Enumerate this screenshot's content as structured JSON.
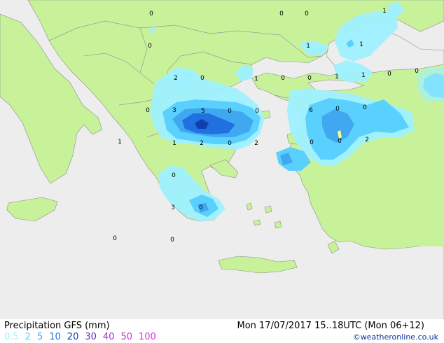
{
  "footer": {
    "title": "Precipitation GFS (mm)",
    "datetime": "Mon 17/07/2017 15..18UTC   (Mon 06+12)",
    "credit": "©weatheronline.co.uk",
    "legend": [
      {
        "label": "0.5",
        "color": "#9ff0ff"
      },
      {
        "label": "2",
        "color": "#5ad0ff"
      },
      {
        "label": "5",
        "color": "#40a8f0"
      },
      {
        "label": "10",
        "color": "#2070e0"
      },
      {
        "label": "20",
        "color": "#1040b0"
      },
      {
        "label": "30",
        "color": "#6a2ab8"
      },
      {
        "label": "40",
        "color": "#9a38c8"
      },
      {
        "label": "50",
        "color": "#c038c8"
      },
      {
        "label": "100",
        "color": "#e030e8"
      }
    ]
  },
  "colors": {
    "sea": "#ededed",
    "land": "#c8f29a",
    "border": "#9a9a9a"
  },
  "map_values": [
    {
      "text": "0"
    },
    {
      "text": "0"
    },
    {
      "text": "0"
    },
    {
      "text": "1"
    },
    {
      "text": "0"
    },
    {
      "text": "1"
    },
    {
      "text": "1"
    },
    {
      "text": "2"
    },
    {
      "text": "0"
    },
    {
      "text": "1"
    },
    {
      "text": "0"
    },
    {
      "text": "0"
    },
    {
      "text": "1"
    },
    {
      "text": "1"
    },
    {
      "text": "0"
    },
    {
      "text": "0"
    },
    {
      "text": "0"
    },
    {
      "text": "3"
    },
    {
      "text": "5"
    },
    {
      "text": "0"
    },
    {
      "text": "0"
    },
    {
      "text": "6"
    },
    {
      "text": "0"
    },
    {
      "text": "0"
    },
    {
      "text": "1"
    },
    {
      "text": "1"
    },
    {
      "text": "2"
    },
    {
      "text": "0"
    },
    {
      "text": "2"
    },
    {
      "text": "0"
    },
    {
      "text": "0"
    },
    {
      "text": "2"
    },
    {
      "text": "0"
    },
    {
      "text": "3"
    },
    {
      "text": "0"
    },
    {
      "text": "0"
    },
    {
      "text": "0"
    }
  ]
}
